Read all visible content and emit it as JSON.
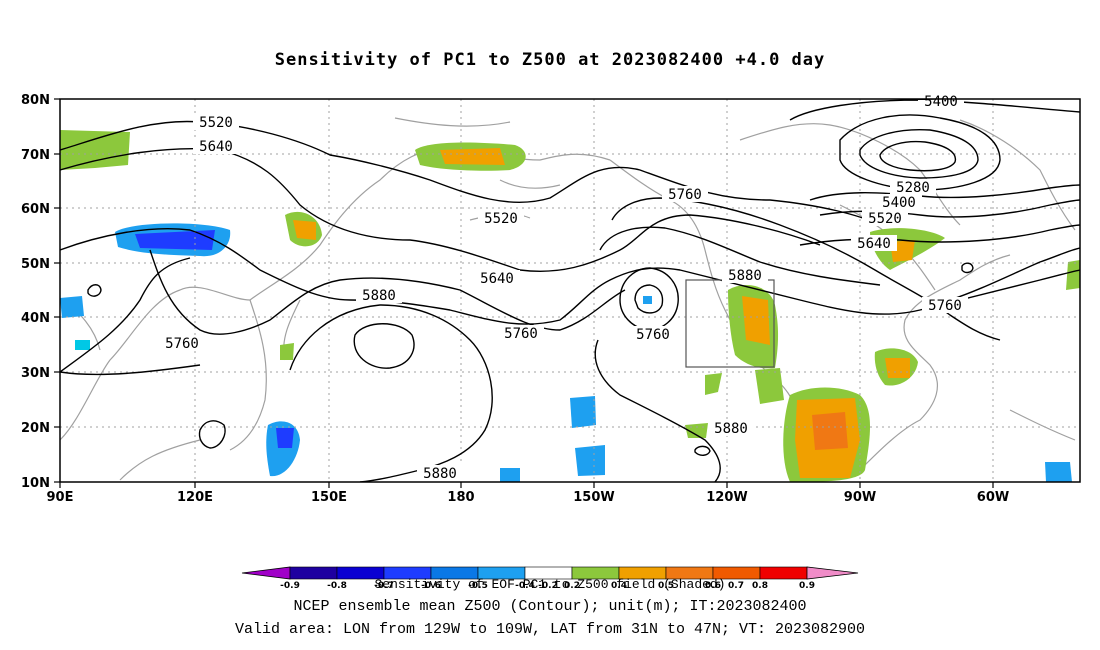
{
  "title": "Sensitivity of PC1 to Z500 at 2023082400 +4.0 day",
  "lat_labels": [
    "80N",
    "70N",
    "60N",
    "50N",
    "40N",
    "30N",
    "20N",
    "10N"
  ],
  "lon_labels": [
    "90E",
    "120E",
    "150E",
    "180",
    "150W",
    "120W",
    "90W",
    "60W"
  ],
  "contour_labels": [
    {
      "text": "5520"
    },
    {
      "text": "5640"
    },
    {
      "text": "5520"
    },
    {
      "text": "5640"
    },
    {
      "text": "5760"
    },
    {
      "text": "5880"
    },
    {
      "text": "5760"
    },
    {
      "text": "5760"
    },
    {
      "text": "5880"
    },
    {
      "text": "5760"
    },
    {
      "text": "5880"
    },
    {
      "text": "5880"
    },
    {
      "text": "5400"
    },
    {
      "text": "5280"
    },
    {
      "text": "5400"
    },
    {
      "text": "5520"
    },
    {
      "text": "5640"
    },
    {
      "text": "5760"
    }
  ],
  "colorbar": {
    "colors": [
      "#a000c8",
      "#1e00a0",
      "#0a00d2",
      "#1e3cff",
      "#0a78e6",
      "#1ea0f0",
      "#00c8e6",
      "#ffffff",
      "#ffffff",
      "#8cc83c",
      "#f0a000",
      "#f07814",
      "#f05a00",
      "#f02800",
      "#f00000",
      "#f08cc8"
    ],
    "tick_labels": [
      "-0.9",
      "-0.8",
      "-0.7",
      "-0.6",
      "-0.5",
      "-0.4",
      "-0.2",
      "0.2",
      "0.4",
      "0.5",
      "0.6",
      "0.7",
      "0.8",
      "0.9"
    ]
  },
  "captions": {
    "line1": "Sensitivity of EOF PC1 to Z500 field (Shaded)",
    "line2": "NCEP ensemble mean Z500 (Contour); unit(m); IT:2023082400",
    "line3": "Valid area: LON from 129W to 109W, LAT from 31N to 47N; VT: 2023082900"
  },
  "colors": {
    "contour": "#000000",
    "coast": "#a0a0a0",
    "grid": "#a0a0a0",
    "green": "#8cc83c",
    "orange": "#f0a000",
    "dark_orange": "#f07814",
    "blue": "#1ea0f0",
    "dark_blue": "#0a78e6",
    "deep_blue": "#1e3cff",
    "cyan": "#00c8e6"
  }
}
